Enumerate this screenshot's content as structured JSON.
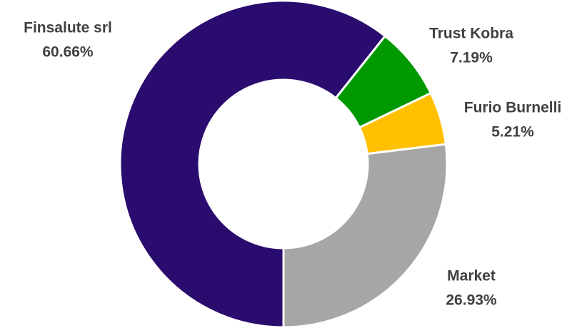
{
  "chart_data": {
    "type": "donut",
    "categories": [
      "Finsalute srl",
      "Trust Kobra",
      "Furio Burnelli",
      "Market"
    ],
    "values": [
      60.66,
      7.19,
      5.21,
      26.93
    ],
    "value_labels": [
      "60.66%",
      "7.19%",
      "5.21%",
      "26.93%"
    ],
    "colors": [
      "#2a0c6e",
      "#009900",
      "#ffc000",
      "#a6a6a6"
    ]
  }
}
